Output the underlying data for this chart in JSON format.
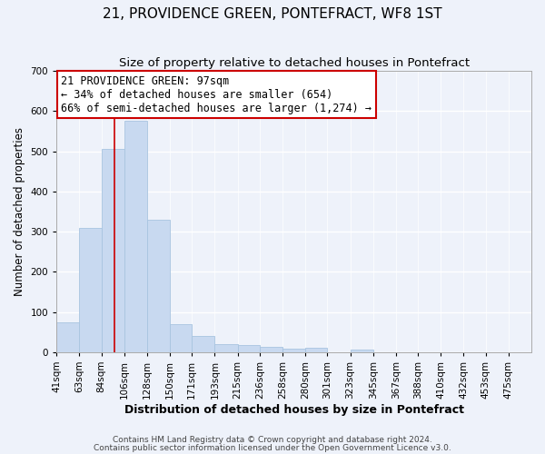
{
  "title": "21, PROVIDENCE GREEN, PONTEFRACT, WF8 1ST",
  "subtitle": "Size of property relative to detached houses in Pontefract",
  "xlabel": "Distribution of detached houses by size in Pontefract",
  "ylabel": "Number of detached properties",
  "bin_labels": [
    "41sqm",
    "63sqm",
    "84sqm",
    "106sqm",
    "128sqm",
    "150sqm",
    "171sqm",
    "193sqm",
    "215sqm",
    "236sqm",
    "258sqm",
    "280sqm",
    "301sqm",
    "323sqm",
    "345sqm",
    "367sqm",
    "388sqm",
    "410sqm",
    "432sqm",
    "453sqm",
    "475sqm"
  ],
  "bin_edges": [
    41,
    63,
    84,
    106,
    128,
    150,
    171,
    193,
    215,
    236,
    258,
    280,
    301,
    323,
    345,
    367,
    388,
    410,
    432,
    453,
    475,
    497
  ],
  "bar_heights": [
    75,
    310,
    505,
    575,
    330,
    70,
    40,
    20,
    17,
    12,
    8,
    10,
    0,
    7,
    0,
    0,
    0,
    0,
    0,
    0,
    0
  ],
  "bar_color": "#c8d9f0",
  "bar_edgecolor": "#a8c4e0",
  "property_size": 97,
  "vline_color": "#cc0000",
  "annotation_line1": "21 PROVIDENCE GREEN: 97sqm",
  "annotation_line2": "← 34% of detached houses are smaller (654)",
  "annotation_line3": "66% of semi-detached houses are larger (1,274) →",
  "annotation_box_edgecolor": "#cc0000",
  "annotation_box_facecolor": "#ffffff",
  "ylim": [
    0,
    700
  ],
  "yticks": [
    0,
    100,
    200,
    300,
    400,
    500,
    600,
    700
  ],
  "footnote1": "Contains HM Land Registry data © Crown copyright and database right 2024.",
  "footnote2": "Contains public sector information licensed under the Open Government Licence v3.0.",
  "title_fontsize": 11,
  "subtitle_fontsize": 9.5,
  "xlabel_fontsize": 9,
  "ylabel_fontsize": 8.5,
  "tick_fontsize": 7.5,
  "annotation_fontsize": 8.5,
  "footnote_fontsize": 6.5,
  "background_color": "#eef2fa",
  "plot_bg_color": "#eef2fa",
  "grid_color": "#ffffff",
  "spine_color": "#aaaaaa"
}
